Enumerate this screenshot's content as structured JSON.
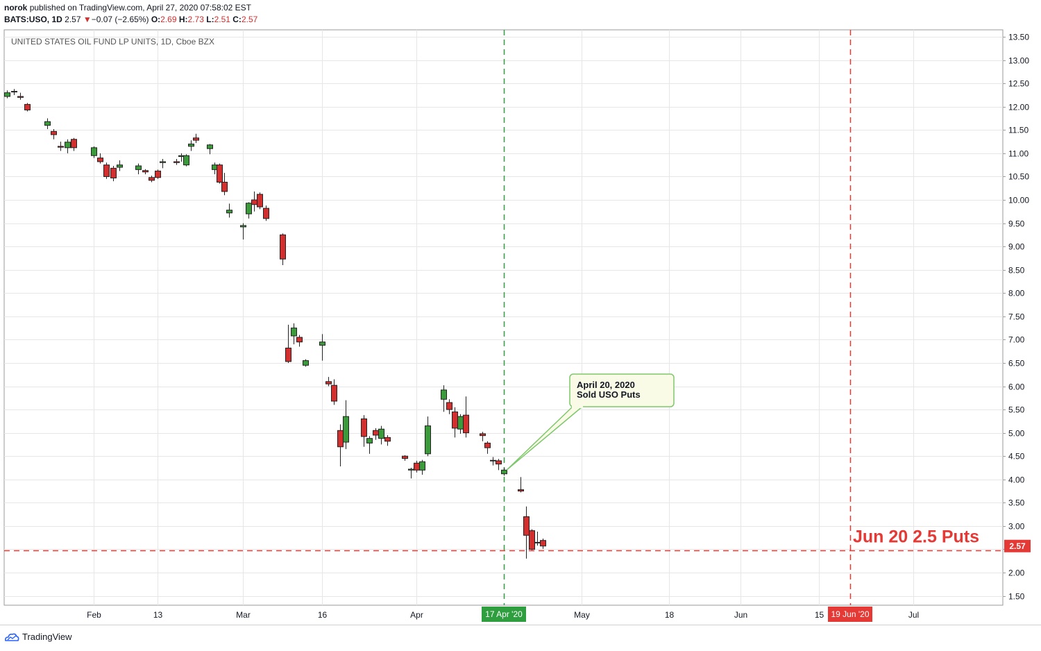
{
  "header": {
    "author": "norok",
    "published_text": "published on TradingView.com, April 27, 2020 07:58:02 EST",
    "symbol": "BATS:USO, 1D",
    "last": "2.57",
    "change_arrow": "▼",
    "change": "−0.07 (−2.65%)",
    "o_label": "O:",
    "o_value": "2.69",
    "h_label": "H:",
    "h_value": "2.73",
    "l_label": "L:",
    "l_value": "2.51",
    "c_label": "C:",
    "c_value": "2.57"
  },
  "footer": {
    "brand": "TradingView"
  },
  "colors": {
    "up": "#3b9b3b",
    "down": "#d32f2f",
    "grid": "#e6e6e6",
    "green_line": "#2e9e3e",
    "red_line": "#e53935",
    "callout_border": "#7cc86b",
    "callout_fill": "#fafbe6"
  },
  "chart_data": {
    "type": "candlestick",
    "title": "UNITED STATES OIL FUND LP UNITS, 1D, Cboe BZX",
    "ylim": [
      1.3,
      13.65
    ],
    "y_ticks": [
      13.5,
      13.0,
      12.5,
      12.0,
      11.5,
      11.0,
      10.5,
      10.0,
      9.5,
      9.0,
      8.5,
      8.0,
      7.5,
      7.0,
      6.5,
      6.0,
      5.5,
      5.0,
      4.5,
      4.0,
      3.5,
      3.0,
      2.5,
      2.0,
      1.5
    ],
    "y_tick_labels": [
      "13.50",
      "13.00",
      "12.50",
      "12.00",
      "11.50",
      "11.00",
      "10.50",
      "10.00",
      "9.50",
      "9.00",
      "8.50",
      "8.00",
      "7.50",
      "7.00",
      "6.50",
      "6.00",
      "5.50",
      "5.00",
      "4.50",
      "4.00",
      "3.50",
      "3.00",
      "2.50",
      "2.00",
      "1.50"
    ],
    "x_ticks": [
      {
        "label": "Feb",
        "date": "2020-02-03"
      },
      {
        "label": "13",
        "date": "2020-02-13"
      },
      {
        "label": "Mar",
        "date": "2020-03-02"
      },
      {
        "label": "16",
        "date": "2020-03-16"
      },
      {
        "label": "Apr",
        "date": "2020-04-01"
      },
      {
        "label": "May",
        "date": "2020-05-01"
      },
      {
        "label": "18",
        "date": "2020-05-18"
      },
      {
        "label": "Jun",
        "date": "2020-06-01"
      },
      {
        "label": "15",
        "date": "2020-06-15"
      },
      {
        "label": "Jul",
        "date": "2020-07-01"
      }
    ],
    "candles": [
      {
        "date": "2020-01-21",
        "o": 12.22,
        "h": 12.35,
        "l": 12.18,
        "c": 12.3
      },
      {
        "date": "2020-01-22",
        "o": 12.33,
        "h": 12.38,
        "l": 12.25,
        "c": 12.32
      },
      {
        "date": "2020-01-23",
        "o": 12.22,
        "h": 12.3,
        "l": 12.15,
        "c": 12.2
      },
      {
        "date": "2020-01-24",
        "o": 12.05,
        "h": 12.08,
        "l": 11.9,
        "c": 11.93
      },
      {
        "date": "2020-01-27",
        "o": 11.6,
        "h": 11.75,
        "l": 11.52,
        "c": 11.68
      },
      {
        "date": "2020-01-28",
        "o": 11.47,
        "h": 11.52,
        "l": 11.3,
        "c": 11.4
      },
      {
        "date": "2020-01-29",
        "o": 11.15,
        "h": 11.25,
        "l": 11.05,
        "c": 11.13
      },
      {
        "date": "2020-01-30",
        "o": 11.12,
        "h": 11.3,
        "l": 11.0,
        "c": 11.24
      },
      {
        "date": "2020-01-31",
        "o": 11.3,
        "h": 11.33,
        "l": 11.05,
        "c": 11.12
      },
      {
        "date": "2020-02-03",
        "o": 10.95,
        "h": 11.15,
        "l": 10.9,
        "c": 11.12
      },
      {
        "date": "2020-02-04",
        "o": 10.9,
        "h": 11.0,
        "l": 10.78,
        "c": 10.82
      },
      {
        "date": "2020-02-05",
        "o": 10.75,
        "h": 10.8,
        "l": 10.45,
        "c": 10.5
      },
      {
        "date": "2020-02-06",
        "o": 10.68,
        "h": 10.73,
        "l": 10.4,
        "c": 10.47
      },
      {
        "date": "2020-02-07",
        "o": 10.7,
        "h": 10.85,
        "l": 10.62,
        "c": 10.75
      },
      {
        "date": "2020-02-10",
        "o": 10.65,
        "h": 10.78,
        "l": 10.55,
        "c": 10.73
      },
      {
        "date": "2020-02-11",
        "o": 10.63,
        "h": 10.66,
        "l": 10.55,
        "c": 10.6
      },
      {
        "date": "2020-02-12",
        "o": 10.48,
        "h": 10.52,
        "l": 10.38,
        "c": 10.42
      },
      {
        "date": "2020-02-13",
        "o": 10.62,
        "h": 10.65,
        "l": 10.45,
        "c": 10.48
      },
      {
        "date": "2020-02-14",
        "o": 10.8,
        "h": 10.88,
        "l": 10.68,
        "c": 10.82
      },
      {
        "date": "2020-02-17",
        "o": 10.82,
        "h": 10.88,
        "l": 10.75,
        "c": 10.8
      },
      {
        "date": "2020-02-18",
        "o": 10.93,
        "h": 11.0,
        "l": 10.82,
        "c": 10.95
      },
      {
        "date": "2020-02-19",
        "o": 10.75,
        "h": 10.98,
        "l": 10.72,
        "c": 10.95
      },
      {
        "date": "2020-02-20",
        "o": 11.15,
        "h": 11.28,
        "l": 11.05,
        "c": 11.2
      },
      {
        "date": "2020-02-21",
        "o": 11.33,
        "h": 11.42,
        "l": 11.22,
        "c": 11.28
      },
      {
        "date": "2020-02-24",
        "o": 11.1,
        "h": 11.2,
        "l": 10.98,
        "c": 11.18
      },
      {
        "date": "2020-02-25",
        "o": 10.65,
        "h": 10.8,
        "l": 10.55,
        "c": 10.75
      },
      {
        "date": "2020-02-26",
        "o": 10.75,
        "h": 10.78,
        "l": 10.35,
        "c": 10.38
      },
      {
        "date": "2020-02-27",
        "o": 10.38,
        "h": 10.58,
        "l": 10.1,
        "c": 10.18
      },
      {
        "date": "2020-02-28",
        "o": 9.72,
        "h": 9.92,
        "l": 9.62,
        "c": 9.78
      },
      {
        "date": "2020-03-02",
        "o": 9.42,
        "h": 9.5,
        "l": 9.15,
        "c": 9.45
      },
      {
        "date": "2020-03-03",
        "o": 9.7,
        "h": 9.95,
        "l": 9.6,
        "c": 9.93
      },
      {
        "date": "2020-03-04",
        "o": 10.0,
        "h": 10.18,
        "l": 9.75,
        "c": 9.9
      },
      {
        "date": "2020-03-05",
        "o": 10.12,
        "h": 10.16,
        "l": 9.8,
        "c": 9.85
      },
      {
        "date": "2020-03-06",
        "o": 9.82,
        "h": 9.88,
        "l": 9.55,
        "c": 9.6
      },
      {
        "date": "2020-03-09",
        "o": 9.25,
        "h": 9.28,
        "l": 8.6,
        "c": 8.73
      },
      {
        "date": "2020-03-10",
        "o": 6.82,
        "h": 7.32,
        "l": 6.5,
        "c": 6.53
      },
      {
        "date": "2020-03-11",
        "o": 7.08,
        "h": 7.35,
        "l": 6.9,
        "c": 7.25
      },
      {
        "date": "2020-03-12",
        "o": 7.05,
        "h": 7.1,
        "l": 6.85,
        "c": 6.95
      },
      {
        "date": "2020-03-13",
        "o": 6.45,
        "h": 6.58,
        "l": 6.42,
        "c": 6.55
      },
      {
        "date": "2020-03-16",
        "o": 6.88,
        "h": 7.12,
        "l": 6.55,
        "c": 6.95
      },
      {
        "date": "2020-03-17",
        "o": 6.1,
        "h": 6.2,
        "l": 6.0,
        "c": 6.05
      },
      {
        "date": "2020-03-18",
        "o": 6.02,
        "h": 6.15,
        "l": 5.6,
        "c": 5.68
      },
      {
        "date": "2020-03-19",
        "o": 5.05,
        "h": 5.18,
        "l": 4.28,
        "c": 4.7
      },
      {
        "date": "2020-03-20",
        "o": 4.8,
        "h": 5.7,
        "l": 4.65,
        "c": 5.35
      },
      {
        "date": "2020-03-23",
        "o": 5.3,
        "h": 5.38,
        "l": 4.7,
        "c": 4.92
      },
      {
        "date": "2020-03-24",
        "o": 4.78,
        "h": 4.93,
        "l": 4.55,
        "c": 4.88
      },
      {
        "date": "2020-03-25",
        "o": 5.05,
        "h": 5.1,
        "l": 4.85,
        "c": 4.95
      },
      {
        "date": "2020-03-26",
        "o": 4.88,
        "h": 5.15,
        "l": 4.75,
        "c": 5.08
      },
      {
        "date": "2020-03-27",
        "o": 4.9,
        "h": 4.95,
        "l": 4.72,
        "c": 4.82
      },
      {
        "date": "2020-03-30",
        "o": 4.5,
        "h": 4.52,
        "l": 4.4,
        "c": 4.45
      },
      {
        "date": "2020-03-31",
        "o": 4.2,
        "h": 4.25,
        "l": 4.02,
        "c": 4.22
      },
      {
        "date": "2020-04-01",
        "o": 4.35,
        "h": 4.4,
        "l": 4.15,
        "c": 4.2
      },
      {
        "date": "2020-04-02",
        "o": 4.2,
        "h": 4.42,
        "l": 4.1,
        "c": 4.38
      },
      {
        "date": "2020-04-03",
        "o": 4.55,
        "h": 5.35,
        "l": 4.5,
        "c": 5.15
      },
      {
        "date": "2020-04-06",
        "o": 5.72,
        "h": 6.02,
        "l": 5.45,
        "c": 5.92
      },
      {
        "date": "2020-04-07",
        "o": 5.65,
        "h": 5.72,
        "l": 5.4,
        "c": 5.5
      },
      {
        "date": "2020-04-08",
        "o": 5.45,
        "h": 5.55,
        "l": 4.9,
        "c": 5.1
      },
      {
        "date": "2020-04-09",
        "o": 5.08,
        "h": 5.4,
        "l": 4.98,
        "c": 5.35
      },
      {
        "date": "2020-04-10",
        "o": 5.38,
        "h": 5.78,
        "l": 4.9,
        "c": 5.0
      },
      {
        "date": "2020-04-13",
        "o": 4.98,
        "h": 5.02,
        "l": 4.82,
        "c": 4.94
      },
      {
        "date": "2020-04-14",
        "o": 4.78,
        "h": 4.82,
        "l": 4.55,
        "c": 4.68
      },
      {
        "date": "2020-04-15",
        "o": 4.41,
        "h": 4.48,
        "l": 4.3,
        "c": 4.4
      },
      {
        "date": "2020-04-16",
        "o": 4.4,
        "h": 4.44,
        "l": 4.2,
        "c": 4.33
      },
      {
        "date": "2020-04-17",
        "o": 4.12,
        "h": 4.25,
        "l": 4.08,
        "c": 4.2
      },
      {
        "date": "2020-04-20",
        "o": 3.78,
        "h": 4.05,
        "l": 3.72,
        "c": 3.75
      },
      {
        "date": "2020-04-21",
        "o": 3.2,
        "h": 3.42,
        "l": 2.3,
        "c": 2.8
      },
      {
        "date": "2020-04-22",
        "o": 2.9,
        "h": 2.93,
        "l": 2.48,
        "c": 2.5
      },
      {
        "date": "2020-04-23",
        "o": 2.65,
        "h": 2.88,
        "l": 2.58,
        "c": 2.64
      },
      {
        "date": "2020-04-24",
        "o": 2.69,
        "h": 2.73,
        "l": 2.51,
        "c": 2.57
      }
    ],
    "vertical_lines": [
      {
        "date": "2020-04-17",
        "label": "17 Apr '20",
        "color": "green"
      },
      {
        "date": "2020-06-19",
        "label": "19 Jun '20",
        "color": "red"
      }
    ],
    "horizontal_lines": [
      {
        "value": 2.47,
        "color": "red"
      }
    ],
    "last_price_label": "2.57",
    "annotations": [
      {
        "type": "callout",
        "lines": [
          "April 20, 2020",
          "Sold USO Puts"
        ],
        "anchor_date": "2020-04-17",
        "anchor_value": 4.2
      },
      {
        "type": "text",
        "text": "Jun 20 2.5 Puts"
      }
    ]
  }
}
